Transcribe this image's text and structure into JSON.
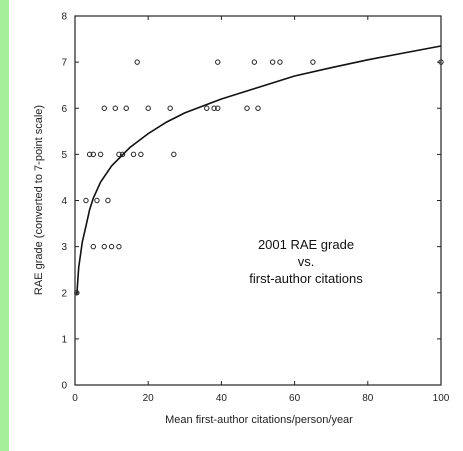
{
  "chart_data": {
    "type": "scatter",
    "title": "",
    "xlabel": "Mean first-author citations/person/year",
    "ylabel": "RAE grade (converted to 7-point scale)",
    "xlim": [
      0,
      100
    ],
    "ylim": [
      0,
      8
    ],
    "xticks": [
      0,
      20,
      40,
      60,
      80,
      100
    ],
    "yticks": [
      0,
      1,
      2,
      3,
      4,
      5,
      6,
      7,
      8
    ],
    "annotation": [
      "2001 RAE grade",
      "vs.",
      "first-author citations"
    ],
    "grid": false,
    "series": [
      {
        "type": "scatter",
        "points": [
          [
            0.5,
            2
          ],
          [
            3,
            4
          ],
          [
            4,
            5
          ],
          [
            5,
            3
          ],
          [
            5,
            5
          ],
          [
            6,
            4
          ],
          [
            7,
            5
          ],
          [
            8,
            3
          ],
          [
            8,
            6
          ],
          [
            9,
            4
          ],
          [
            10,
            3
          ],
          [
            11,
            6
          ],
          [
            12,
            3
          ],
          [
            12,
            5
          ],
          [
            13,
            5
          ],
          [
            14,
            6
          ],
          [
            16,
            5
          ],
          [
            17,
            7
          ],
          [
            18,
            5
          ],
          [
            20,
            6
          ],
          [
            26,
            6
          ],
          [
            27,
            5
          ],
          [
            36,
            6
          ],
          [
            38,
            6
          ],
          [
            39,
            6
          ],
          [
            39,
            7
          ],
          [
            47,
            6
          ],
          [
            49,
            7
          ],
          [
            50,
            6
          ],
          [
            54,
            7
          ],
          [
            56,
            7
          ],
          [
            65,
            7
          ],
          [
            100,
            7
          ]
        ]
      },
      {
        "type": "line",
        "curve": [
          [
            0.5,
            1.95
          ],
          [
            1,
            2.55
          ],
          [
            2,
            3.1
          ],
          [
            3,
            3.45
          ],
          [
            4,
            3.8
          ],
          [
            5,
            4.05
          ],
          [
            7,
            4.4
          ],
          [
            10,
            4.75
          ],
          [
            15,
            5.15
          ],
          [
            20,
            5.45
          ],
          [
            25,
            5.7
          ],
          [
            30,
            5.9
          ],
          [
            40,
            6.2
          ],
          [
            50,
            6.45
          ],
          [
            60,
            6.7
          ],
          [
            70,
            6.88
          ],
          [
            80,
            7.05
          ],
          [
            90,
            7.2
          ],
          [
            100,
            7.35
          ]
        ]
      }
    ]
  }
}
